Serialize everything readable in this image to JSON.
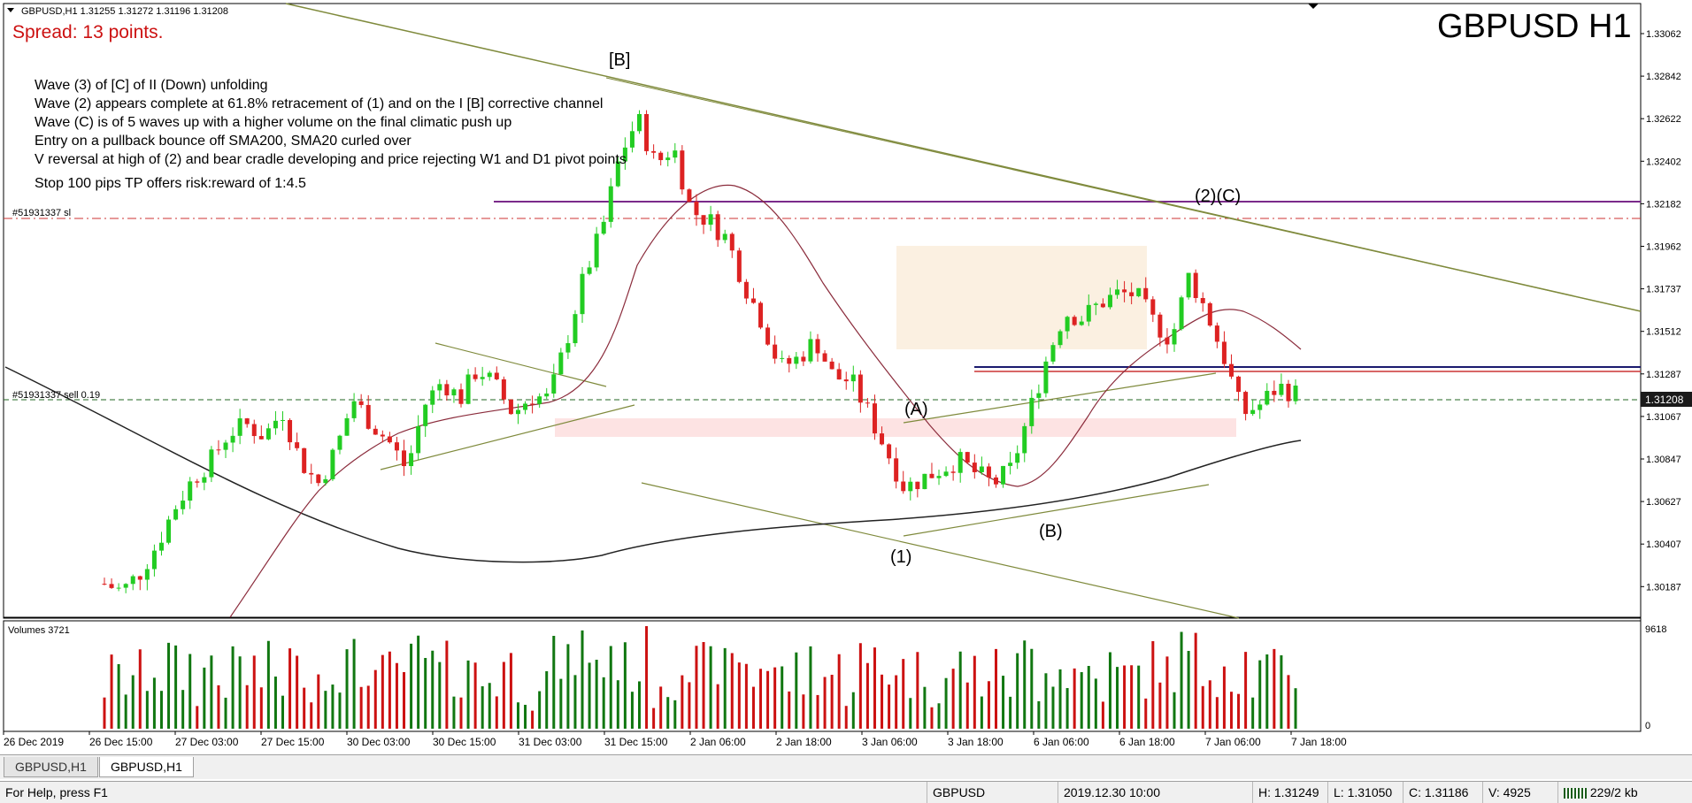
{
  "header": {
    "info": "GBPUSD,H1  1.31255 1.31272 1.31196 1.31208",
    "spread": "Spread: 13 points.",
    "symbol_title": "GBPUSD H1"
  },
  "annotations": [
    "Wave (3) of [C] of II (Down) unfolding",
    "Wave (2) appears complete at 61.8% retracement of (1) and on the I [B] corrective channel",
    "Wave (C) is of 5 waves up with a higher volume on the final climatic push up",
    "Entry on a pullback bounce off SMA200, SMA20 curled over",
    "V reversal at high of (2) and bear cradle developing and price rejecting W1 and D1 pivot points",
    "Stop 100 pips TP offers risk:reward of 1:4.5"
  ],
  "wave_labels": {
    "b_major": "[B]",
    "c2": "(2)(C)",
    "a": "(A)",
    "w1": "(1)",
    "b": "(B)"
  },
  "order_labels": {
    "sl": "#51931337 sl",
    "sell": "#51931337 sell 0.19"
  },
  "current_price": "1.31208",
  "volume_label": "Volumes 3721",
  "volume_max_label": "9618",
  "volume_zero_label": "0",
  "colors": {
    "bull": "#22cc22",
    "bear": "#dd2222",
    "vol_bull": "#117711",
    "vol_bear": "#cc1111",
    "sma20": "#8b2c3c",
    "sma200": "#222222",
    "trendline": "#7f8a3c",
    "resistance": "#7a2a8a",
    "stop_loss": "#cc3333",
    "navy": "#1a1a6e"
  },
  "chart_data": {
    "type": "candlestick",
    "title": "GBPUSD H1",
    "ylim": [
      1.3008,
      1.3317
    ],
    "y_ticks": [
      "1.33062",
      "1.32842",
      "1.32622",
      "1.32402",
      "1.32182",
      "1.31962",
      "1.31737",
      "1.31512",
      "1.31287",
      "1.31067",
      "1.30847",
      "1.30627",
      "1.30407",
      "1.30187"
    ],
    "x_ticks": [
      "26 Dec 2019",
      "26 Dec 15:00",
      "27 Dec 03:00",
      "27 Dec 15:00",
      "30 Dec 03:00",
      "30 Dec 15:00",
      "31 Dec 03:00",
      "31 Dec 15:00",
      "2 Jan 06:00",
      "2 Jan 18:00",
      "3 Jan 06:00",
      "3 Jan 18:00",
      "6 Jan 06:00",
      "6 Jan 18:00",
      "7 Jan 06:00",
      "7 Jan 18:00"
    ],
    "horizontal_levels": {
      "resistance": 1.3222,
      "stop_loss": 1.3212,
      "entry": 1.3121,
      "navy_line": 1.3138,
      "red_line": 1.3134
    },
    "close_path": [
      1.3018,
      1.3014,
      1.3024,
      1.304,
      1.306,
      1.3075,
      1.3085,
      1.31,
      1.3104,
      1.3098,
      1.3112,
      1.3085,
      1.3072,
      1.309,
      1.3118,
      1.3105,
      1.3095,
      1.308,
      1.3115,
      1.3128,
      1.3118,
      1.3135,
      1.3125,
      1.311,
      1.312,
      1.3118,
      1.315,
      1.3185,
      1.321,
      1.325,
      1.327,
      1.3245,
      1.3255,
      1.322,
      1.3215,
      1.3205,
      1.318,
      1.316,
      1.3135,
      1.314,
      1.315,
      1.313,
      1.3128,
      1.311,
      1.309,
      1.307,
      1.3075,
      1.308,
      1.3085,
      1.3078,
      1.3072,
      1.308,
      1.311,
      1.314,
      1.3165,
      1.3162,
      1.317,
      1.3175,
      1.3175,
      1.316,
      1.315,
      1.3185,
      1.3165,
      1.314,
      1.311,
      1.3115,
      1.3125,
      1.3121
    ],
    "volumes": {
      "max": 9618,
      "note": "hourly tick volumes, peak ~9618"
    }
  }
}
